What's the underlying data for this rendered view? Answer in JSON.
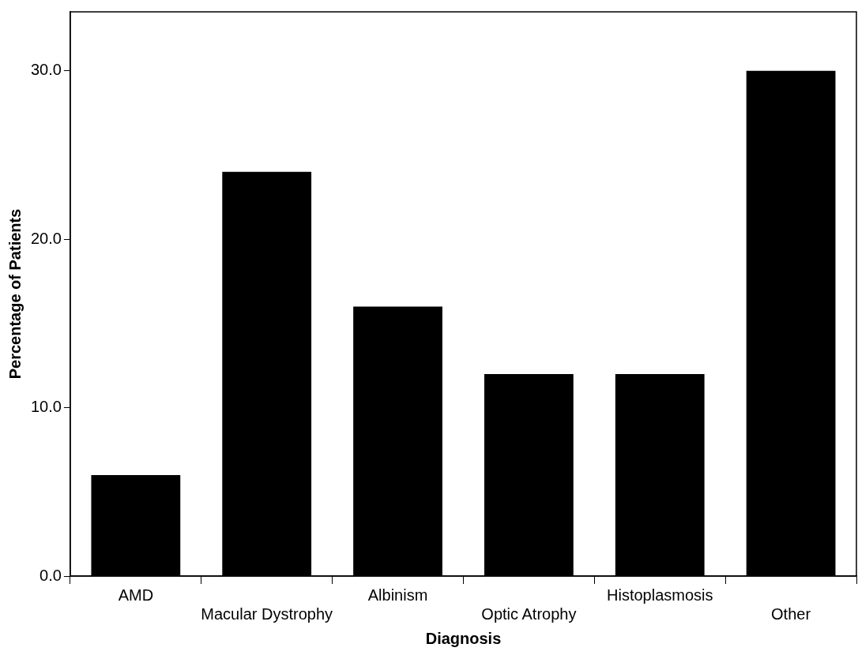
{
  "chart_data": {
    "type": "bar",
    "xlabel": "Diagnosis",
    "ylabel": "Percentage of Patients",
    "categories": [
      "AMD",
      "Macular Dystrophy",
      "Albinism",
      "Optic Atrophy",
      "Histoplasmosis",
      "Other"
    ],
    "values": [
      6,
      24,
      16,
      12,
      12,
      30
    ],
    "color": "#000000",
    "ylim": [
      0,
      33.5
    ],
    "yticks": [
      {
        "value": 0,
        "label": "0.0"
      },
      {
        "value": 10,
        "label": "10.0"
      },
      {
        "value": 20,
        "label": "20.0"
      },
      {
        "value": 30,
        "label": "30.0"
      }
    ],
    "grid": false,
    "legend": false
  }
}
